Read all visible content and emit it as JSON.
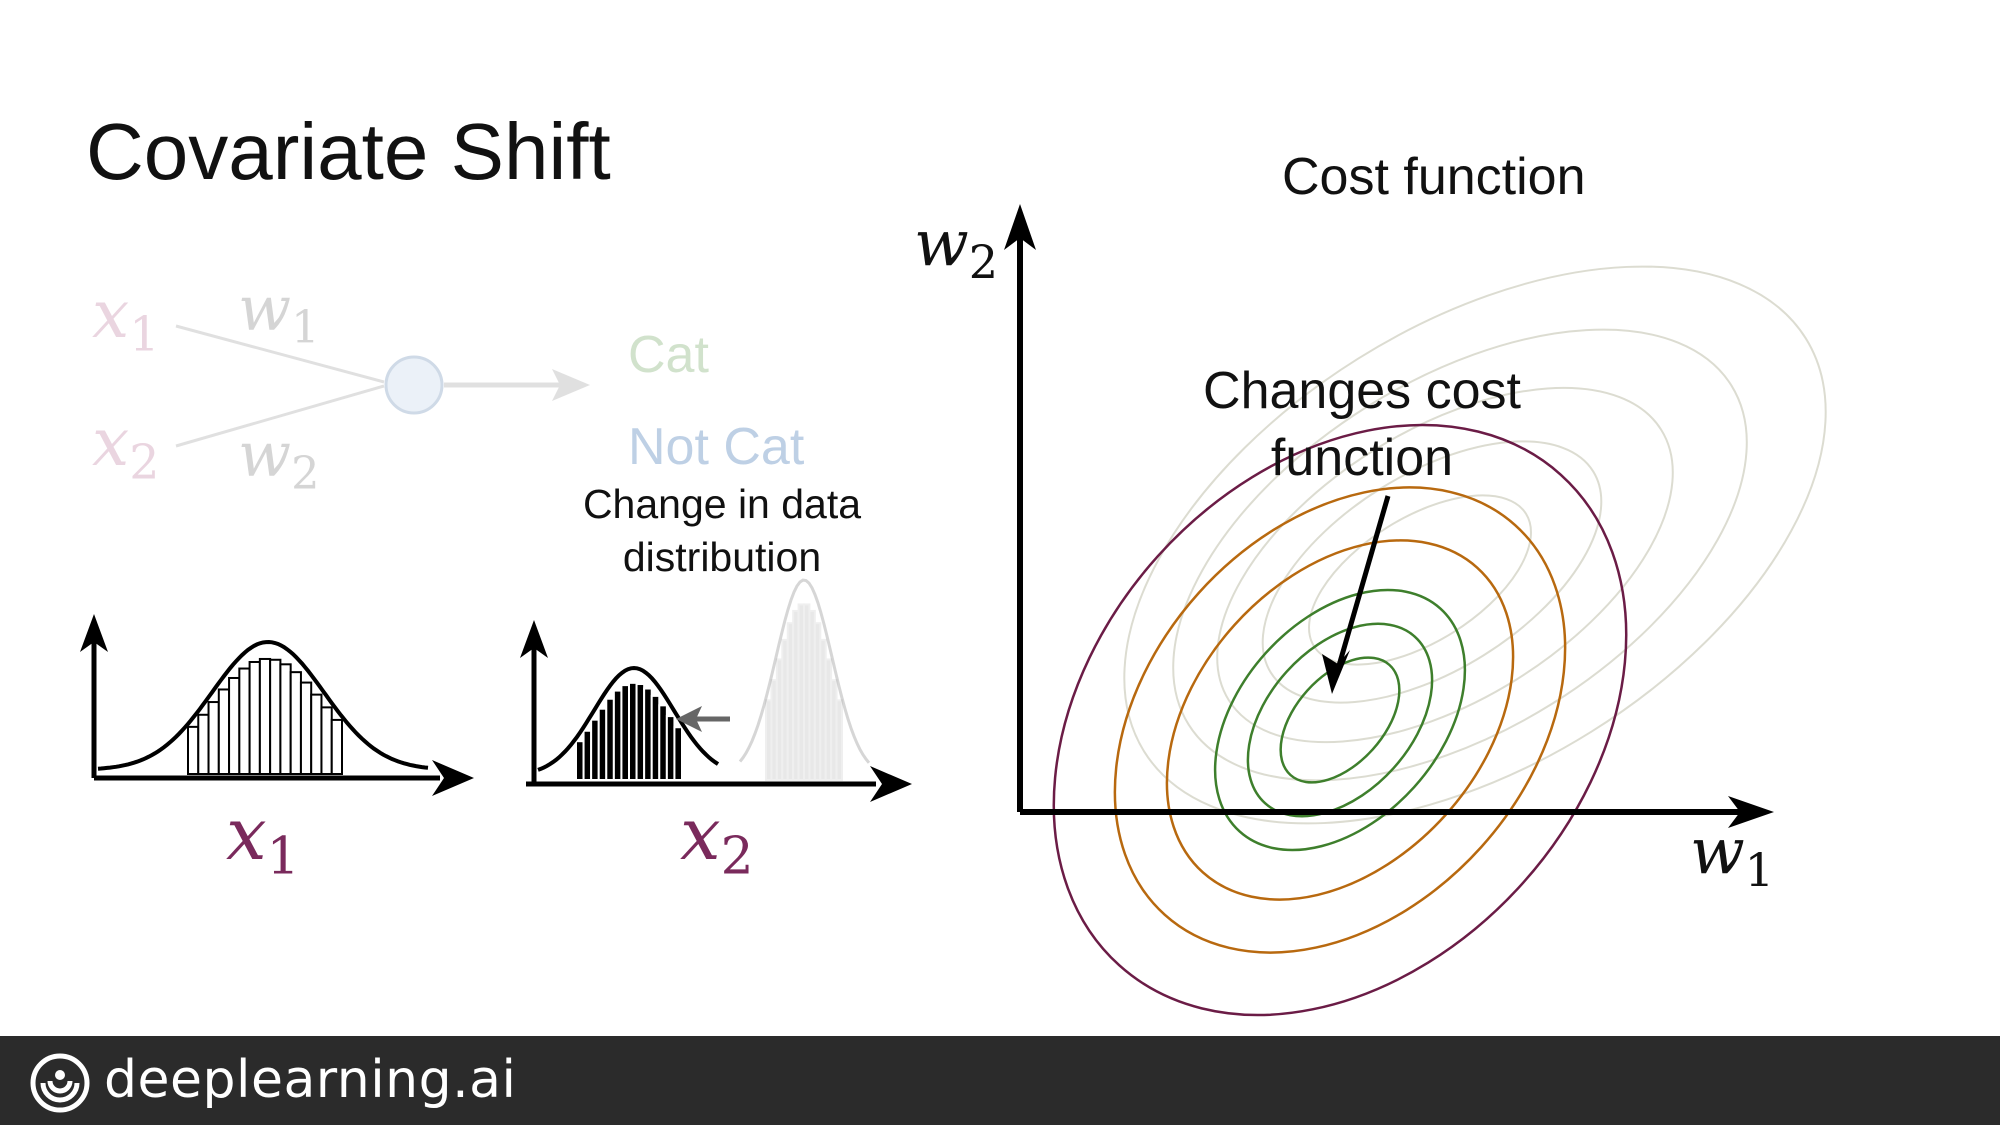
{
  "title": "Covariate Shift",
  "cost_title": "Cost function",
  "annotation_changes": "Changes cost function",
  "annotation_data": "Change in data distribution",
  "network": {
    "output_cat": "Cat",
    "output_not_cat": "Not Cat",
    "inputs": [
      {
        "var": "x",
        "sub": "1"
      },
      {
        "var": "x",
        "sub": "2"
      }
    ],
    "weights": [
      {
        "var": "w",
        "sub": "1"
      },
      {
        "var": "w",
        "sub": "2"
      }
    ]
  },
  "axes": {
    "hist1": {
      "var": "x",
      "sub": "1"
    },
    "hist2": {
      "var": "x",
      "sub": "2"
    },
    "cost_x": {
      "var": "w",
      "sub": "1"
    },
    "cost_y": {
      "var": "w",
      "sub": "2"
    }
  },
  "colors": {
    "axis_label": "#7a2a5c",
    "contour_outer": "#6b1c46",
    "contour_mid": "#b8690f",
    "contour_inner": "#3e7f2c",
    "footer": "#2b2b2b"
  },
  "footer": {
    "brand": "deeplearning.ai",
    "logo_icon": "deeplearning-logo-icon"
  }
}
